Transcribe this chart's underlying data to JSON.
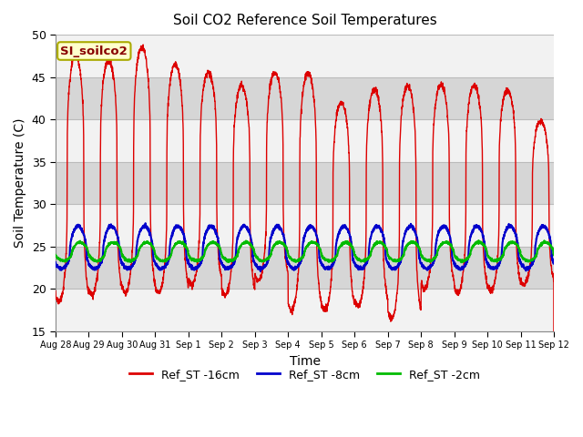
{
  "title": "Soil CO2 Reference Soil Temperatures",
  "xlabel": "Time",
  "ylabel": "Soil Temperature (C)",
  "ylim": [
    15,
    50
  ],
  "yticks": [
    15,
    20,
    25,
    30,
    35,
    40,
    45,
    50
  ],
  "legend_label": "SI_soilco2",
  "legend_entries": [
    "Ref_ST -16cm",
    "Ref_ST -8cm",
    "Ref_ST -2cm"
  ],
  "line_colors": [
    "#dd0000",
    "#0000cc",
    "#00bb00"
  ],
  "num_days": 15,
  "x_tick_labels": [
    "Aug 28",
    "Aug 29",
    "Aug 30",
    "Aug 31",
    "Sep 1",
    "Sep 2",
    "Sep 3",
    "Sep 4",
    "Sep 5",
    "Sep 6",
    "Sep 7",
    "Sep 8",
    "Sep 9",
    "Sep 10",
    "Sep 11",
    "Sep 12"
  ],
  "annotation_box_color": "#ffffcc",
  "annotation_text_color": "#880000",
  "annotation_edge_color": "#aaaa00",
  "peak_heights_16cm": [
    47.5,
    47.0,
    48.5,
    46.5,
    45.5,
    44.0,
    45.5,
    45.5,
    42.0,
    43.5,
    44.0,
    44.0,
    44.0,
    43.5,
    39.8
  ],
  "trough_heights_16cm": [
    18.5,
    19.2,
    19.5,
    19.5,
    20.5,
    19.2,
    21.0,
    17.5,
    17.5,
    18.0,
    16.5,
    20.0,
    19.5,
    19.8,
    20.5
  ],
  "stripe_colors": [
    "#ffffff",
    "#d0d0d0"
  ],
  "plot_bg_color": "#e0e0e0",
  "grid_color": "#bbbbbb"
}
